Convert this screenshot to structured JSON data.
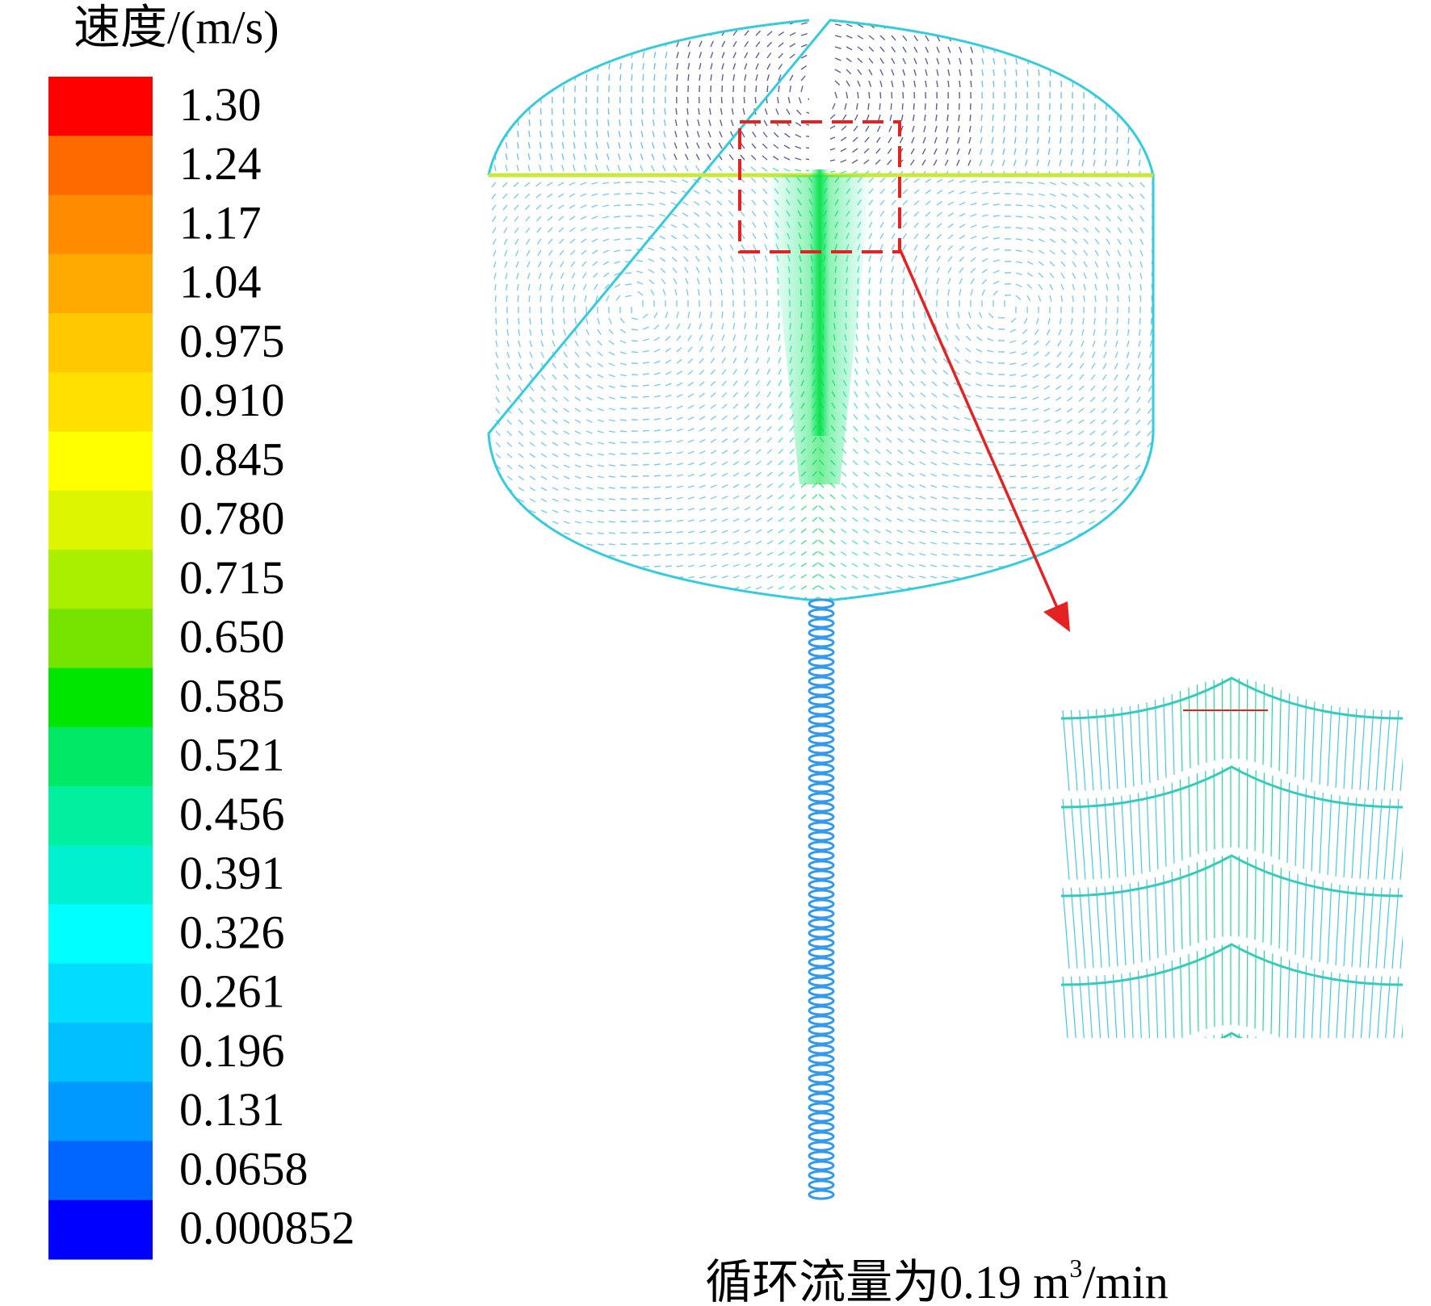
{
  "legend": {
    "title": "速度/(m/s)",
    "levels": [
      {
        "label": "1.30",
        "color": "#ff0000"
      },
      {
        "label": "1.24",
        "color": "#ff6a00"
      },
      {
        "label": "1.17",
        "color": "#ff8c00"
      },
      {
        "label": "1.04",
        "color": "#ffaa00"
      },
      {
        "label": "0.975",
        "color": "#ffc800"
      },
      {
        "label": "0.910",
        "color": "#ffe000"
      },
      {
        "label": "0.845",
        "color": "#ffff00"
      },
      {
        "label": "0.780",
        "color": "#ddf500"
      },
      {
        "label": "0.715",
        "color": "#aaee00"
      },
      {
        "label": "0.650",
        "color": "#77e400"
      },
      {
        "label": "0.585",
        "color": "#00e600"
      },
      {
        "label": "0.521",
        "color": "#00e866"
      },
      {
        "label": "0.456",
        "color": "#00f0a0"
      },
      {
        "label": "0.391",
        "color": "#00f0d0"
      },
      {
        "label": "0.326",
        "color": "#00ffff"
      },
      {
        "label": "0.261",
        "color": "#00ddff"
      },
      {
        "label": "0.196",
        "color": "#00c0ff"
      },
      {
        "label": "0.131",
        "color": "#0099ff"
      },
      {
        "label": "0.0658",
        "color": "#0066ff"
      },
      {
        "label": "0.000852",
        "color": "#0000ff"
      }
    ]
  },
  "caption": {
    "prefix": "循环流量为0.19 m",
    "sup": "3",
    "suffix": "/min"
  }
}
